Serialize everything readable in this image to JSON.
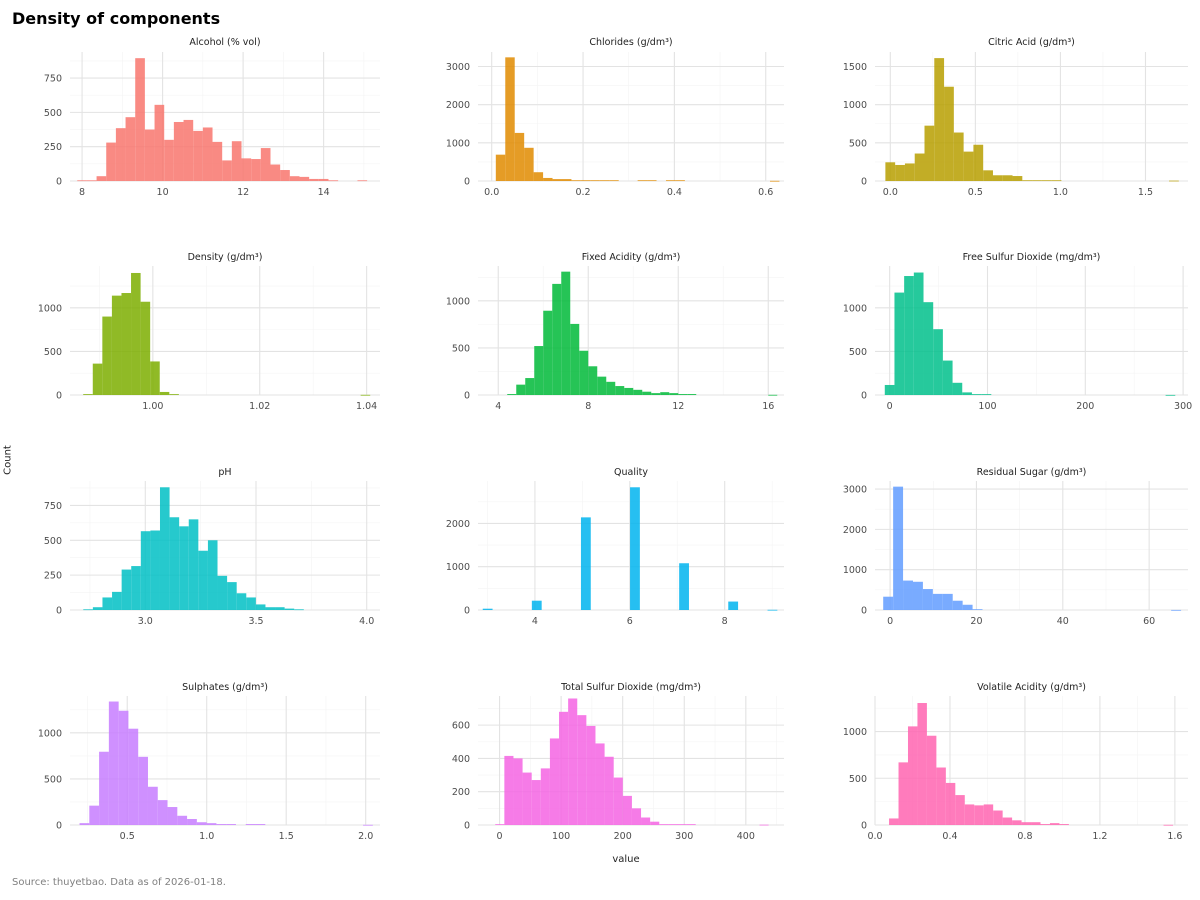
{
  "header": {
    "title": "Density of components"
  },
  "axes": {
    "ylabel": "Count",
    "xlabel": "value"
  },
  "caption": "Source: thuyetbao. Data as of 2026-01-18.",
  "chart_data": {
    "type": "bar",
    "title": "Density of components",
    "xlabel": "value",
    "ylabel": "Count",
    "grid": true,
    "layout": "4 rows x 3 columns facet grid, free scales",
    "facets": [
      {
        "title": "Alcohol (% vol)",
        "color": "#F8766D",
        "xlim": [
          7.7,
          15.4
        ],
        "xticks": [
          8,
          10,
          12,
          14
        ],
        "ylim": [
          0,
          940
        ],
        "yticks": [
          0,
          250,
          500,
          750
        ],
        "bin_start": 7.88,
        "bin_width": 0.24,
        "values": [
          5,
          5,
          35,
          280,
          385,
          465,
          895,
          375,
          555,
          300,
          430,
          445,
          365,
          390,
          285,
          150,
          290,
          165,
          160,
          240,
          120,
          80,
          35,
          30,
          15,
          15,
          5,
          0,
          0,
          5
        ]
      },
      {
        "title": "Chlorides (g/dm³)",
        "color": "#E08B00",
        "xlim": [
          -0.03,
          0.64
        ],
        "xticks": [
          0.0,
          0.2,
          0.4,
          0.6
        ],
        "xtick_labels": [
          "0.0",
          "0.2",
          "0.4",
          "0.6"
        ],
        "ylim": [
          0,
          3380
        ],
        "yticks": [
          0,
          1000,
          2000,
          3000
        ],
        "bin_start": 0.009,
        "bin_width": 0.0207,
        "values": [
          690,
          3240,
          1260,
          870,
          230,
          80,
          50,
          50,
          20,
          20,
          20,
          20,
          20,
          0,
          0,
          20,
          20,
          0,
          20,
          20,
          0,
          0,
          0,
          0,
          0,
          0,
          0,
          0,
          0,
          5
        ]
      },
      {
        "title": "Citric Acid (g/dm³)",
        "color": "#B79F00",
        "xlim": [
          -0.09,
          1.75
        ],
        "xticks": [
          0.0,
          0.5,
          1.0,
          1.5
        ],
        "xtick_labels": [
          "0.0",
          "0.5",
          "1.0",
          "1.5"
        ],
        "ylim": [
          0,
          1690
        ],
        "yticks": [
          0,
          500,
          1000,
          1500
        ],
        "bin_start": -0.029,
        "bin_width": 0.0575,
        "values": [
          245,
          210,
          230,
          360,
          725,
          1610,
          1235,
          635,
          385,
          475,
          140,
          75,
          75,
          65,
          10,
          10,
          10,
          10,
          0,
          0,
          0,
          0,
          0,
          0,
          0,
          0,
          0,
          0,
          0,
          5
        ]
      },
      {
        "title": "Density (g/dm³)",
        "color": "#7CAE00",
        "xlim": [
          0.9845,
          1.0425
        ],
        "xticks": [
          1.0,
          1.02,
          1.04
        ],
        "xtick_labels": [
          "1.00",
          "1.02",
          "1.04"
        ],
        "ylim": [
          0,
          1480
        ],
        "yticks": [
          0,
          500,
          1000
        ],
        "bin_start": 0.98697,
        "bin_width": 0.00179,
        "values": [
          10,
          360,
          900,
          1140,
          1170,
          1400,
          1070,
          385,
          35,
          10,
          0,
          0,
          0,
          0,
          0,
          0,
          0,
          0,
          0,
          0,
          0,
          0,
          0,
          0,
          0,
          0,
          0,
          0,
          0,
          2
        ]
      },
      {
        "title": "Fixed Acidity (g/dm³)",
        "color": "#00BA38",
        "xlim": [
          3.1,
          16.7
        ],
        "xticks": [
          4,
          8,
          12,
          16
        ],
        "ylim": [
          0,
          1370
        ],
        "yticks": [
          0,
          500,
          1000
        ],
        "bin_start": 4.4,
        "bin_width": 0.4,
        "values": [
          10,
          110,
          180,
          520,
          895,
          1180,
          1310,
          755,
          470,
          305,
          195,
          140,
          95,
          75,
          55,
          35,
          20,
          30,
          20,
          10,
          10,
          0,
          0,
          0,
          0,
          0,
          0,
          0,
          0,
          2
        ]
      },
      {
        "title": "Free Sulfur Dioxide (mg/dm³)",
        "color": "#00C08B",
        "xlim": [
          -15,
          305
        ],
        "xticks": [
          0,
          100,
          200,
          300
        ],
        "ylim": [
          0,
          1480
        ],
        "yticks": [
          0,
          500,
          1000
        ],
        "bin_start": -5,
        "bin_width": 9.9,
        "values": [
          115,
          1175,
          1365,
          1405,
          1065,
          755,
          395,
          140,
          30,
          10,
          10,
          0,
          0,
          0,
          0,
          0,
          0,
          0,
          0,
          0,
          0,
          0,
          0,
          0,
          0,
          0,
          0,
          0,
          0,
          1
        ]
      },
      {
        "title": "pH",
        "color": "#00BFC4",
        "xlim": [
          2.66,
          4.06
        ],
        "xticks": [
          3.0,
          3.5,
          4.0
        ],
        "xtick_labels": [
          "3.0",
          "3.5",
          "4.0"
        ],
        "ylim": [
          0,
          925
        ],
        "yticks": [
          0,
          250,
          500,
          750
        ],
        "bin_start": 2.72,
        "bin_width": 0.0433,
        "values": [
          5,
          20,
          90,
          130,
          290,
          315,
          565,
          570,
          880,
          665,
          600,
          650,
          425,
          500,
          245,
          200,
          120,
          90,
          40,
          20,
          20,
          10,
          5,
          0,
          0,
          0,
          0,
          0,
          0,
          0
        ]
      },
      {
        "title": "Quality",
        "color": "#00B4EF",
        "xlim": [
          2.8,
          9.25
        ],
        "xticks": [
          4,
          6,
          8
        ],
        "ylim": [
          0,
          2980
        ],
        "yticks": [
          0,
          1000,
          2000
        ],
        "bin_start": 2.9,
        "bin_width": 0.207,
        "values": [
          30,
          0,
          0,
          0,
          0,
          215,
          0,
          0,
          0,
          0,
          2140,
          0,
          0,
          0,
          0,
          2835,
          0,
          0,
          0,
          0,
          1080,
          0,
          0,
          0,
          0,
          195,
          0,
          0,
          0,
          5
        ]
      },
      {
        "title": "Residual Sugar (g/dm³)",
        "color": "#619CFF",
        "xlim": [
          -3.5,
          69
        ],
        "xticks": [
          0,
          20,
          40,
          60
        ],
        "ylim": [
          0,
          3200
        ],
        "yticks": [
          0,
          1000,
          2000,
          3000
        ],
        "bin_start": -1.6,
        "bin_width": 2.3,
        "values": [
          330,
          3060,
          730,
          700,
          520,
          400,
          400,
          230,
          130,
          20,
          0,
          0,
          0,
          0,
          0,
          0,
          0,
          0,
          0,
          0,
          0,
          0,
          0,
          0,
          0,
          0,
          0,
          0,
          0,
          2
        ]
      },
      {
        "title": "Sulphates (g/dm³)",
        "color": "#C77CFF",
        "xlim": [
          0.14,
          2.09
        ],
        "xticks": [
          0.5,
          1.0,
          1.5,
          2.0
        ],
        "xtick_labels": [
          "0.5",
          "1.0",
          "1.5",
          "2.0"
        ],
        "ylim": [
          0,
          1400
        ],
        "yticks": [
          0,
          500,
          1000
        ],
        "bin_start": 0.2,
        "bin_width": 0.0615,
        "values": [
          20,
          210,
          795,
          1340,
          1240,
          1045,
          740,
          415,
          270,
          195,
          100,
          65,
          30,
          20,
          10,
          10,
          0,
          10,
          10,
          0,
          0,
          0,
          0,
          0,
          0,
          0,
          0,
          0,
          0,
          2
        ]
      },
      {
        "title": "Total Sulfur Dioxide (mg/dm³)",
        "color": "#F564E3",
        "xlim": [
          -35,
          462
        ],
        "xticks": [
          0,
          100,
          200,
          300,
          400
        ],
        "ylim": [
          0,
          775
        ],
        "yticks": [
          0,
          200,
          400,
          600
        ],
        "bin_start": -7,
        "bin_width": 14.8,
        "values": [
          5,
          415,
          400,
          315,
          270,
          340,
          520,
          680,
          760,
          660,
          595,
          490,
          410,
          285,
          175,
          100,
          45,
          20,
          5,
          5,
          5,
          5,
          0,
          0,
          0,
          0,
          0,
          0,
          0,
          2
        ]
      },
      {
        "title": "Volatile Acidity (g/dm³)",
        "color": "#FF64B0",
        "xlim": [
          0.0,
          1.67
        ],
        "xticks": [
          0.0,
          0.4,
          0.8,
          1.2,
          1.6
        ],
        "xtick_labels": [
          "0.0",
          "0.4",
          "0.8",
          "1.2",
          "1.6"
        ],
        "ylim": [
          0,
          1380
        ],
        "yticks": [
          0,
          500,
          1000
        ],
        "bin_start": 0.075,
        "bin_width": 0.0505,
        "values": [
          70,
          670,
          1055,
          1305,
          955,
          615,
          450,
          320,
          220,
          210,
          220,
          155,
          80,
          50,
          30,
          30,
          10,
          20,
          10,
          0,
          0,
          0,
          0,
          0,
          0,
          0,
          0,
          0,
          0,
          2
        ]
      }
    ]
  }
}
